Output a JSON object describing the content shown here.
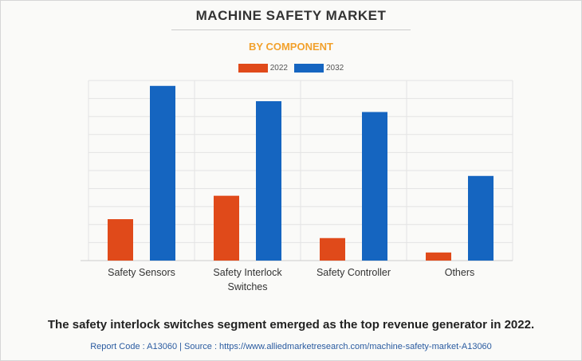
{
  "header": {
    "title": "MACHINE SAFETY MARKET",
    "subtitle": "BY COMPONENT",
    "subtitle_color": "#f2a12c"
  },
  "chart_data": {
    "type": "bar",
    "categories": [
      "Safety Sensors",
      "Safety Interlock Switches",
      "Safety Controller",
      "Others"
    ],
    "category_lines": [
      [
        "Safety Sensors"
      ],
      [
        "Safety Interlock",
        "Switches"
      ],
      [
        "Safety Controller"
      ],
      [
        "Others"
      ]
    ],
    "series": [
      {
        "name": "2022",
        "color": "#e04a1a",
        "values": [
          2.3,
          3.6,
          1.25,
          0.45
        ]
      },
      {
        "name": "2032",
        "color": "#1565c0",
        "values": [
          9.7,
          8.85,
          8.25,
          4.7
        ]
      }
    ],
    "ylim": [
      0,
      10
    ],
    "grid": true,
    "legend": "top-center",
    "xlabel": "",
    "ylabel": ""
  },
  "caption": "The safety interlock switches segment emerged as the top revenue generator in 2022.",
  "footer": "Report Code : A13060  |  Source : https://www.alliedmarketresearch.com/machine-safety-market-A13060"
}
